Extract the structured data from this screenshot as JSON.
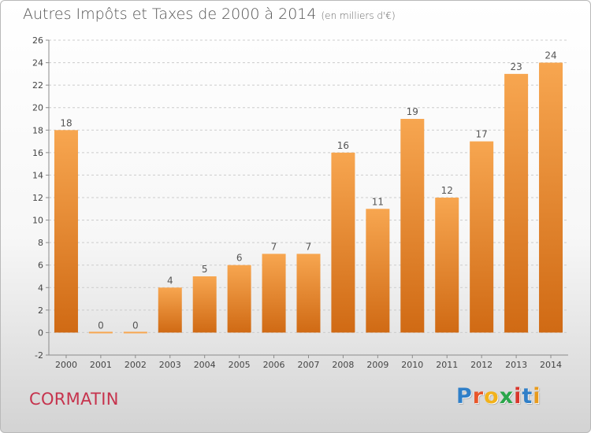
{
  "title": "Autres Impôts et Taxes de 2000 à 2014",
  "unit": "(en milliers d'€)",
  "commune": "CORMATIN",
  "logo": {
    "letters": [
      "P",
      "r",
      "o",
      "x",
      "i",
      "t",
      "i"
    ]
  },
  "colors": {
    "bar_light": "#f7a650",
    "bar_dark": "#d06a14",
    "commune": "#c6334d",
    "axis": "#8a8a8a",
    "grid": "#cccccc"
  },
  "chart_data": {
    "type": "bar",
    "title": "Autres Impôts et Taxes de 2000 à 2014",
    "xlabel": "",
    "ylabel": "",
    "categories": [
      "2000",
      "2001",
      "2002",
      "2003",
      "2004",
      "2005",
      "2006",
      "2007",
      "2008",
      "2009",
      "2010",
      "2011",
      "2012",
      "2013",
      "2014"
    ],
    "values": [
      18,
      0,
      0,
      4,
      5,
      6,
      7,
      7,
      16,
      11,
      19,
      12,
      17,
      23,
      24
    ],
    "ylim": [
      -2,
      26
    ],
    "yticks": [
      -2,
      0,
      2,
      4,
      6,
      8,
      10,
      12,
      14,
      16,
      18,
      20,
      22,
      24,
      26
    ],
    "grid": "horizontal dashed",
    "legend": "none"
  }
}
